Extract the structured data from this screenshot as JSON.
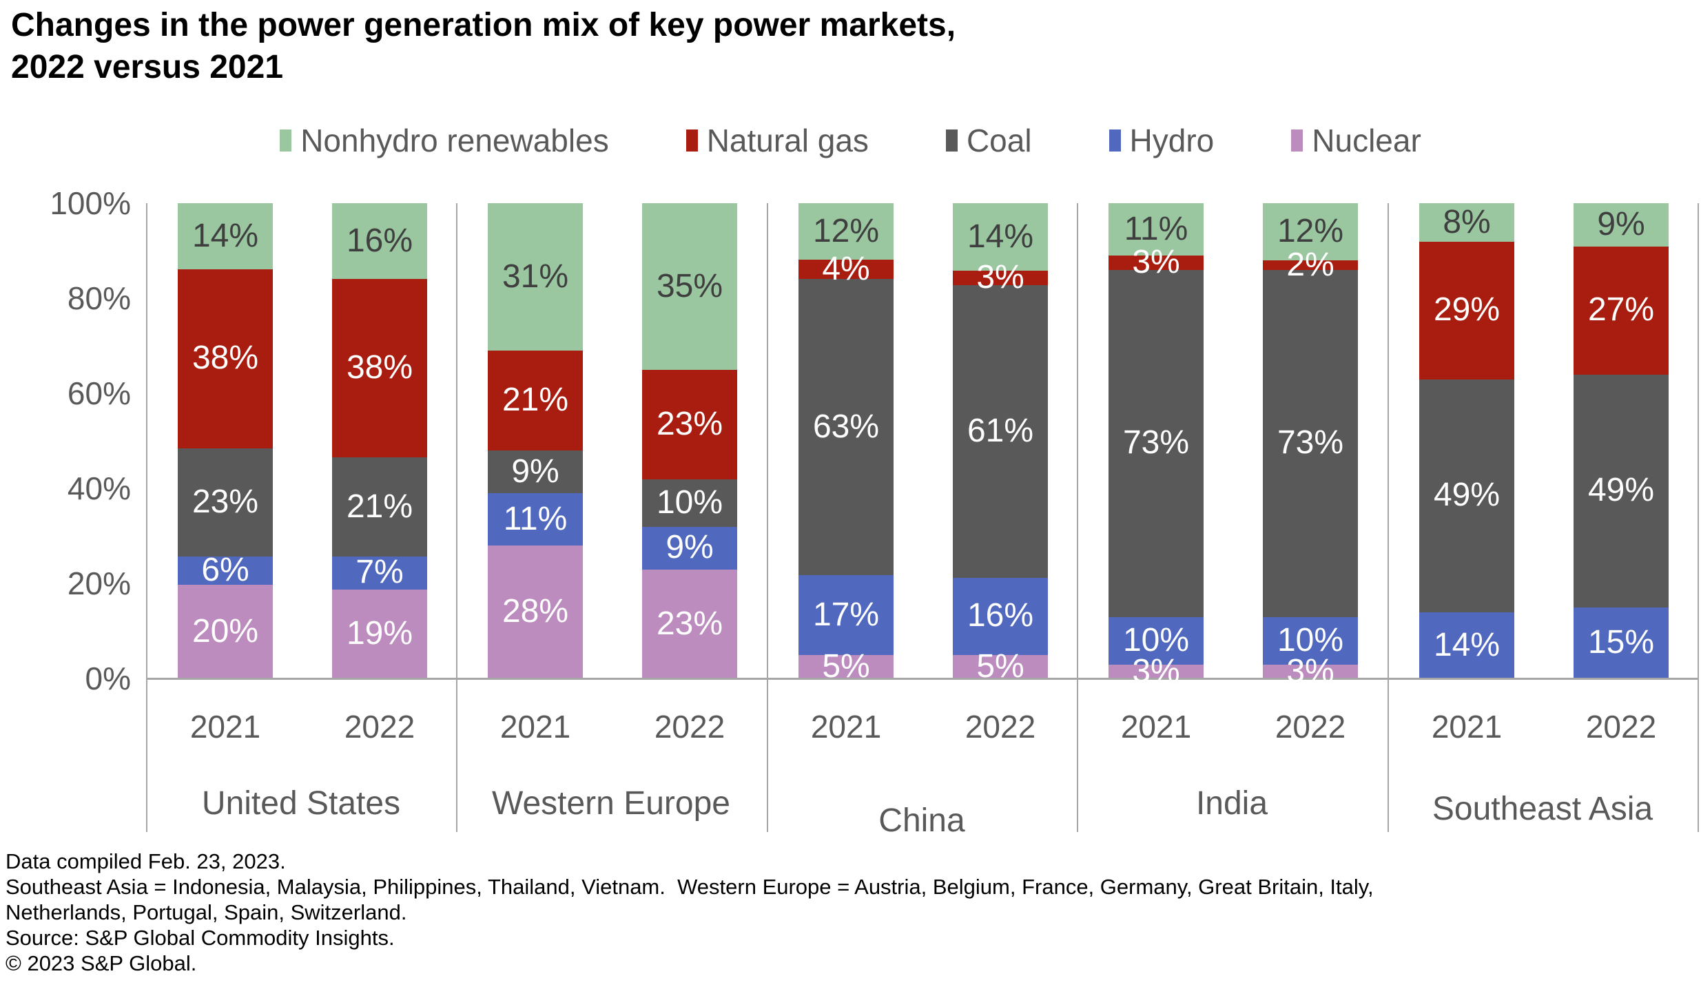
{
  "title": {
    "line1": "Changes in the power generation mix of key power markets,",
    "line2": "2022 versus 2021"
  },
  "legend": {
    "items": [
      {
        "label": "Nonhydro renewables",
        "color": "#9ac7a0"
      },
      {
        "label": "Natural gas",
        "color": "#a81d10"
      },
      {
        "label": "Coal",
        "color": "#595959"
      },
      {
        "label": "Hydro",
        "color": "#5069be"
      },
      {
        "label": "Nuclear",
        "color": "#bc8cbe"
      }
    ]
  },
  "y_axis": {
    "tick_labels": [
      "100%",
      "80%",
      "60%",
      "40%",
      "20%",
      "0%"
    ],
    "min": 0,
    "max": 100
  },
  "chart_data": {
    "type": "bar",
    "stacked": true,
    "value_unit": "%",
    "title": "Changes in the power generation mix of key power markets, 2022 versus 2021",
    "ylim": [
      0,
      100
    ],
    "grid": false,
    "legend_position": "top",
    "stack_order_bottom_to_top": [
      "Nuclear",
      "Hydro",
      "Coal",
      "Natural gas",
      "Nonhydro renewables"
    ],
    "series_colors": {
      "Nuclear": "#bc8cbe",
      "Hydro": "#5069be",
      "Coal": "#595959",
      "Natural gas": "#a81d10",
      "Nonhydro renewables": "#9ac7a0"
    },
    "label_text_colors": {
      "Nonhydro renewables": "#3f3f3f",
      "default": "#ffffff"
    },
    "groups": [
      {
        "region": "United States",
        "bars": [
          {
            "year": "2021",
            "values": {
              "Nuclear": 20,
              "Hydro": 6,
              "Coal": 23,
              "Natural gas": 38,
              "Nonhydro renewables": 14
            }
          },
          {
            "year": "2022",
            "values": {
              "Nuclear": 19,
              "Hydro": 7,
              "Coal": 21,
              "Natural gas": 38,
              "Nonhydro renewables": 16
            }
          }
        ]
      },
      {
        "region": "Western Europe",
        "bars": [
          {
            "year": "2021",
            "values": {
              "Nuclear": 28,
              "Hydro": 11,
              "Coal": 9,
              "Natural gas": 21,
              "Nonhydro renewables": 31
            }
          },
          {
            "year": "2022",
            "values": {
              "Nuclear": 23,
              "Hydro": 9,
              "Coal": 10,
              "Natural gas": 23,
              "Nonhydro renewables": 35
            }
          }
        ]
      },
      {
        "region": "China",
        "bars": [
          {
            "year": "2021",
            "values": {
              "Nuclear": 5,
              "Hydro": 17,
              "Coal": 63,
              "Natural gas": 4,
              "Nonhydro renewables": 12
            }
          },
          {
            "year": "2022",
            "values": {
              "Nuclear": 5,
              "Hydro": 16,
              "Coal": 61,
              "Natural gas": 3,
              "Nonhydro renewables": 14
            }
          }
        ]
      },
      {
        "region": "India",
        "bars": [
          {
            "year": "2021",
            "values": {
              "Nuclear": 3,
              "Hydro": 10,
              "Coal": 73,
              "Natural gas": 3,
              "Nonhydro renewables": 11
            }
          },
          {
            "year": "2022",
            "values": {
              "Nuclear": 3,
              "Hydro": 10,
              "Coal": 73,
              "Natural gas": 2,
              "Nonhydro renewables": 12
            }
          }
        ]
      },
      {
        "region": "Southeast Asia",
        "bars": [
          {
            "year": "2021",
            "values": {
              "Nuclear": 0,
              "Hydro": 14,
              "Coal": 49,
              "Natural gas": 29,
              "Nonhydro renewables": 8
            }
          },
          {
            "year": "2022",
            "values": {
              "Nuclear": 0,
              "Hydro": 15,
              "Coal": 49,
              "Natural gas": 27,
              "Nonhydro renewables": 9
            }
          }
        ]
      }
    ]
  },
  "footer": {
    "lines": [
      "Data compiled Feb. 23, 2023.",
      "Southeast Asia = Indonesia, Malaysia, Philippines, Thailand, Vietnam.  Western Europe = Austria, Belgium, France, Germany, Great Britain, Italy,",
      "Netherlands, Portugal, Spain, Switzerland.",
      "Source: S&P Global Commodity Insights.",
      "© 2023 S&P Global."
    ]
  }
}
